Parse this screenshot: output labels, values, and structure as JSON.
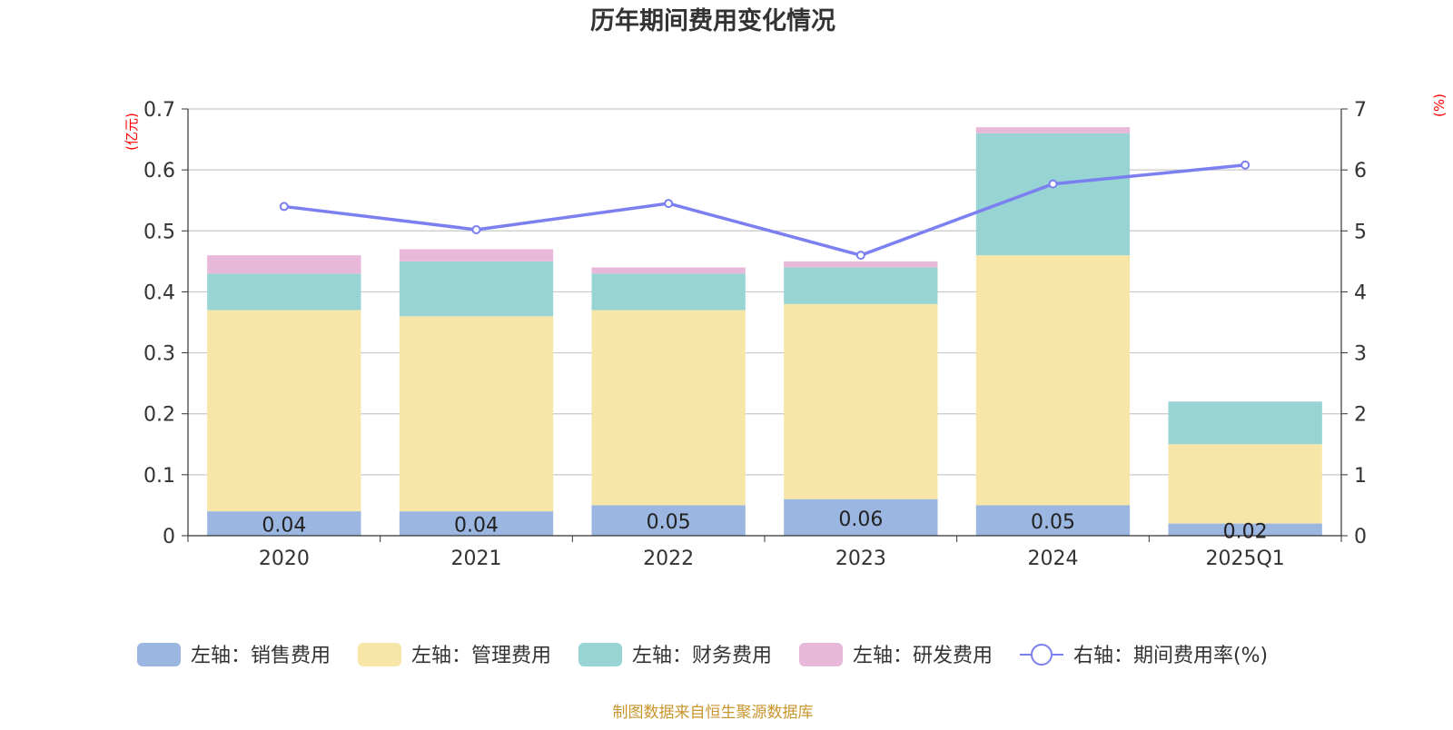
{
  "title": "历年期间费用变化情况",
  "left_axis_unit": "(亿元)",
  "right_axis_unit": "(%)",
  "source_note": "制图数据来自恒生聚源数据库",
  "colors": {
    "sales": "#9bb6e0",
    "admin": "#f7e6a8",
    "finance": "#98d4d4",
    "rd": "#e8b8d8",
    "rate_line": "#7b7ff0",
    "title": "#333333",
    "axis_unit": "#ff0000",
    "source": "#c8962d",
    "grid": "#c8c8c8",
    "text": "#333333"
  },
  "chart_data": {
    "type": "bar",
    "stacked": true,
    "title": "历年期间费用变化情况",
    "categories": [
      "2020",
      "2021",
      "2022",
      "2023",
      "2024",
      "2025Q1"
    ],
    "ylim_left": [
      0,
      0.7
    ],
    "yticks_left": [
      "0",
      "0.1",
      "0.2",
      "0.3",
      "0.4",
      "0.5",
      "0.6",
      "0.7"
    ],
    "ylim_right": [
      0,
      7
    ],
    "yticks_right": [
      "0",
      "1",
      "2",
      "3",
      "4",
      "5",
      "6",
      "7"
    ],
    "series": [
      {
        "key": "sales",
        "name": "左轴：销售费用",
        "axis": "left",
        "type": "bar",
        "values": [
          0.04,
          0.04,
          0.05,
          0.06,
          0.05,
          0.02
        ],
        "labels": [
          "0.04",
          "0.04",
          "0.05",
          "0.06",
          "0.05",
          "0.02"
        ]
      },
      {
        "key": "admin",
        "name": "左轴：管理费用",
        "axis": "left",
        "type": "bar",
        "values": [
          0.33,
          0.32,
          0.32,
          0.32,
          0.41,
          0.13
        ]
      },
      {
        "key": "finance",
        "name": "左轴：财务费用",
        "axis": "left",
        "type": "bar",
        "values": [
          0.06,
          0.09,
          0.06,
          0.06,
          0.2,
          0.07
        ]
      },
      {
        "key": "rd",
        "name": "左轴：研发费用",
        "axis": "left",
        "type": "bar",
        "values": [
          0.03,
          0.02,
          0.01,
          0.01,
          0.01,
          0
        ]
      },
      {
        "key": "rate_line",
        "name": "右轴：期间费用率(%)",
        "axis": "right",
        "type": "line",
        "values": [
          5.4,
          5.02,
          5.45,
          4.6,
          5.77,
          6.08
        ]
      }
    ],
    "legend_position": "bottom",
    "grid": true
  }
}
